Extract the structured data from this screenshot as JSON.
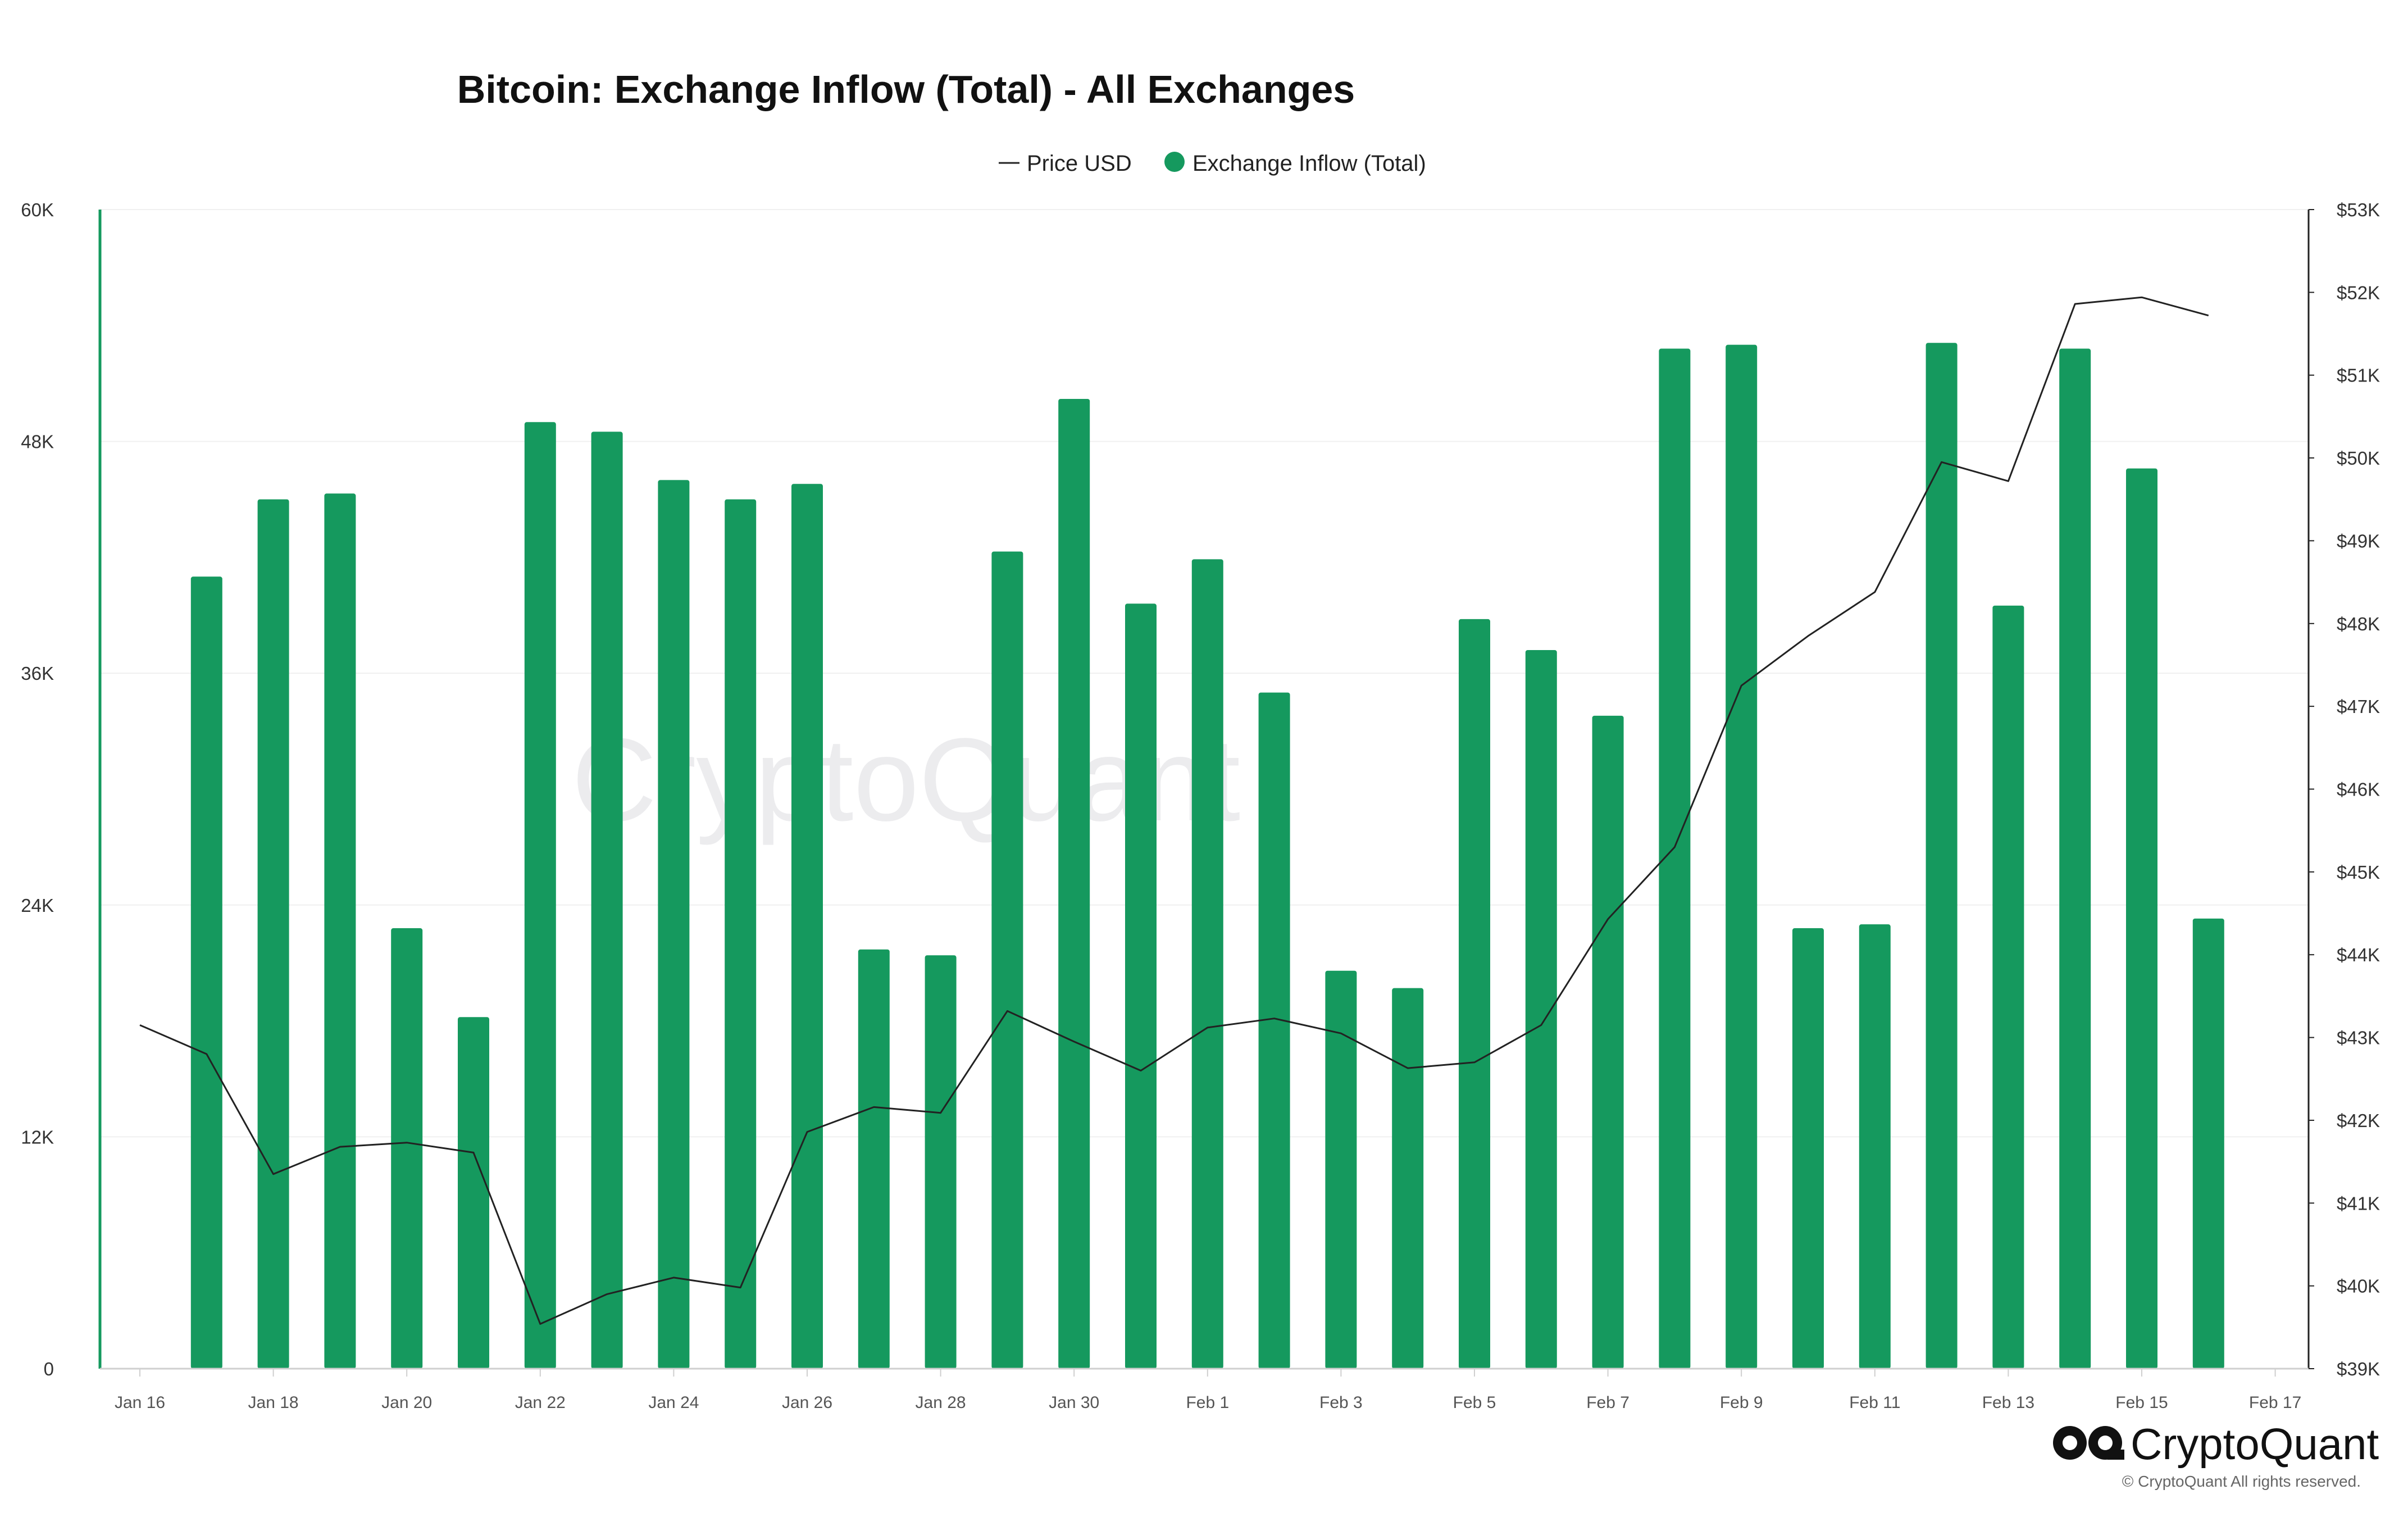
{
  "chart_data": {
    "type": "bar",
    "title": "Bitcoin: Exchange Inflow (Total) - All Exchanges",
    "legend": {
      "placement": "top-center",
      "items": [
        {
          "label": "Price USD",
          "marker": "line",
          "color": "#222222"
        },
        {
          "label": "Exchange Inflow (Total)",
          "marker": "dot",
          "color": "#15995e"
        }
      ]
    },
    "x_ticks": [
      "Jan 16",
      "Jan 18",
      "Jan 20",
      "Jan 22",
      "Jan 24",
      "Jan 26",
      "Jan 28",
      "Jan 30",
      "Feb 1",
      "Feb 3",
      "Feb 5",
      "Feb 7",
      "Feb 9",
      "Feb 11",
      "Feb 13",
      "Feb 15",
      "Feb 17"
    ],
    "y_left": {
      "min": 0,
      "max": 60000,
      "ticks": [
        "0",
        "12K",
        "24K",
        "36K",
        "48K",
        "60K"
      ]
    },
    "y_right": {
      "min": 39000,
      "max": 53000,
      "ticks": [
        "$39K",
        "$40K",
        "$41K",
        "$42K",
        "$43K",
        "$44K",
        "$45K",
        "$46K",
        "$47K",
        "$48K",
        "$49K",
        "$50K",
        "$51K",
        "$52K",
        "$53K"
      ]
    },
    "grid": true,
    "series": [
      {
        "name": "Exchange Inflow (Total)",
        "type": "bar",
        "axis": "left",
        "color": "#15995e",
        "start_day": 1,
        "values": [
          41000,
          45000,
          45300,
          22800,
          18200,
          49000,
          48500,
          46000,
          45000,
          45800,
          21700,
          21400,
          42300,
          50200,
          39600,
          41900,
          35000,
          20600,
          19700,
          38800,
          37200,
          33800,
          52800,
          53000,
          22800,
          23000,
          53100,
          39500,
          52800,
          46600,
          23300
        ]
      },
      {
        "name": "Price USD",
        "type": "line",
        "axis": "right",
        "color": "#222222",
        "start_day": 0,
        "values": [
          43150,
          42800,
          41350,
          41680,
          41730,
          41610,
          39540,
          39900,
          40100,
          39980,
          41860,
          42160,
          42090,
          43320,
          42950,
          42600,
          43120,
          43230,
          43050,
          42630,
          42700,
          43150,
          44430,
          45300,
          47250,
          47850,
          48380,
          49950,
          49720,
          51860,
          51940,
          51720
        ]
      }
    ],
    "watermark": "CryptoQuant"
  },
  "branding": {
    "logo_text": "CryptoQuant",
    "copyright": "© CryptoQuant All rights reserved."
  }
}
